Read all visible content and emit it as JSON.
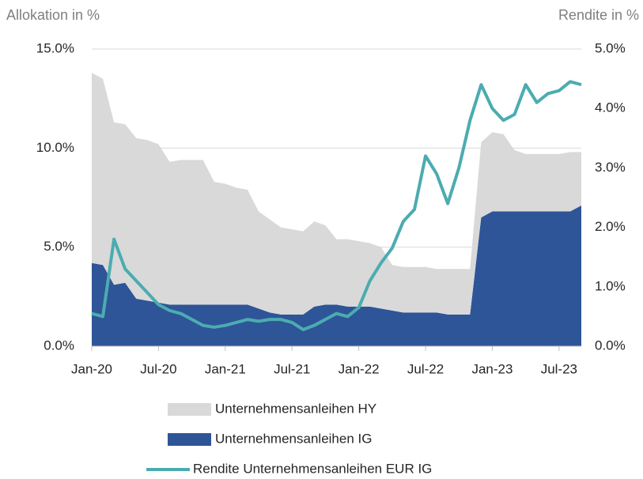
{
  "chart_data": {
    "type": "area",
    "y_title": "Allokation in %",
    "y2_title": "Rendite in %",
    "categories": [
      "Jan-20",
      null,
      null,
      null,
      null,
      null,
      "Jul-20",
      null,
      null,
      null,
      null,
      null,
      "Jan-21",
      null,
      null,
      null,
      null,
      null,
      "Jul-21",
      null,
      null,
      null,
      null,
      null,
      "Jan-22",
      null,
      null,
      null,
      null,
      null,
      "Jul-22",
      null,
      null,
      null,
      null,
      null,
      "Jan-23",
      null,
      null,
      null,
      null,
      null,
      "Jul-23",
      null,
      null
    ],
    "series": [
      {
        "name": "Unternehmensanleihen IG",
        "color": "#2e5597",
        "kind": "area",
        "axis": "y",
        "values": [
          4.2,
          4.1,
          3.1,
          3.2,
          2.4,
          2.3,
          2.2,
          2.1,
          2.1,
          2.1,
          2.1,
          2.1,
          2.1,
          2.1,
          2.1,
          1.9,
          1.7,
          1.6,
          1.6,
          1.6,
          2.0,
          2.1,
          2.1,
          2.0,
          2.0,
          2.0,
          1.9,
          1.8,
          1.7,
          1.7,
          1.7,
          1.7,
          1.6,
          1.6,
          1.6,
          6.5,
          6.8,
          6.8,
          6.8,
          6.8,
          6.8,
          6.8,
          6.8,
          6.8,
          7.1
        ]
      },
      {
        "name": "Unternehmensanleihen HY",
        "color": "#d9d9d9",
        "kind": "area",
        "axis": "y",
        "values": [
          9.6,
          9.4,
          8.2,
          8.0,
          8.1,
          8.1,
          8.0,
          7.2,
          7.3,
          7.3,
          7.3,
          6.2,
          6.1,
          5.9,
          5.8,
          4.9,
          4.7,
          4.4,
          4.3,
          4.2,
          4.3,
          4.0,
          3.3,
          3.4,
          3.3,
          3.2,
          3.1,
          2.3,
          2.3,
          2.3,
          2.3,
          2.2,
          2.3,
          2.3,
          2.3,
          3.8,
          4.0,
          3.9,
          3.1,
          2.9,
          2.9,
          2.9,
          2.9,
          3.0,
          2.7
        ]
      },
      {
        "name": "Rendite Unternehmensanleihen EUR IG",
        "color": "#4bacb0",
        "kind": "line",
        "axis": "y2",
        "values": [
          0.55,
          0.5,
          1.8,
          1.3,
          1.1,
          0.9,
          0.7,
          0.6,
          0.55,
          0.45,
          0.35,
          0.32,
          0.35,
          0.4,
          0.45,
          0.42,
          0.45,
          0.45,
          0.4,
          0.28,
          0.35,
          0.45,
          0.55,
          0.5,
          0.65,
          1.1,
          1.4,
          1.65,
          2.1,
          2.3,
          3.2,
          2.9,
          2.4,
          3.0,
          3.8,
          4.4,
          4.0,
          3.8,
          3.9,
          4.4,
          4.1,
          4.25,
          4.3,
          4.45,
          4.4
        ]
      }
    ],
    "ylim": [
      0,
      15
    ],
    "yticks": [
      {
        "value": 0,
        "label": "0.0%"
      },
      {
        "value": 5,
        "label": "5.0%"
      },
      {
        "value": 10,
        "label": "10.0%"
      },
      {
        "value": 15,
        "label": "15.0%"
      }
    ],
    "y2lim": [
      0,
      5
    ],
    "y2ticks": [
      {
        "value": 0,
        "label": "0.0%"
      },
      {
        "value": 1,
        "label": "1.0%"
      },
      {
        "value": 2,
        "label": "2.0%"
      },
      {
        "value": 3,
        "label": "3.0%"
      },
      {
        "value": 4,
        "label": "4.0%"
      },
      {
        "value": 5,
        "label": "5.0%"
      }
    ],
    "grid": true
  }
}
